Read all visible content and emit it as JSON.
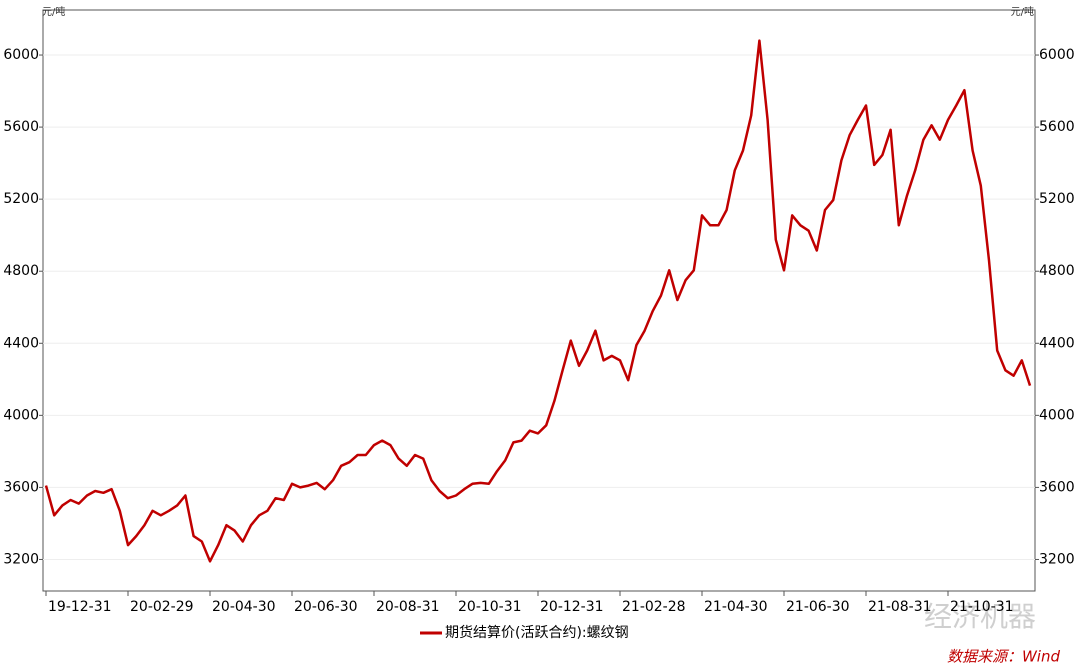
{
  "chart_data": {
    "type": "line",
    "y_unit": "元/吨",
    "y2_unit": "元/吨",
    "source": "数据来源：Wind",
    "watermark": "经济机器",
    "categories": [
      "19-12-31",
      null,
      null,
      null,
      null,
      null,
      null,
      null,
      null,
      null,
      "20-02-29",
      null,
      null,
      null,
      null,
      null,
      null,
      null,
      null,
      null,
      "20-04-30",
      null,
      null,
      null,
      null,
      null,
      null,
      null,
      null,
      null,
      "20-06-30",
      null,
      null,
      null,
      null,
      null,
      null,
      null,
      null,
      null,
      "20-08-31",
      null,
      null,
      null,
      null,
      null,
      null,
      null,
      null,
      null,
      "20-10-31",
      null,
      null,
      null,
      null,
      null,
      null,
      null,
      null,
      null,
      "20-12-31",
      null,
      null,
      null,
      null,
      null,
      null,
      null,
      null,
      null,
      "21-02-28",
      null,
      null,
      null,
      null,
      null,
      null,
      null,
      null,
      null,
      "21-04-30",
      null,
      null,
      null,
      null,
      null,
      null,
      null,
      null,
      null,
      "21-06-30",
      null,
      null,
      null,
      null,
      null,
      null,
      null,
      null,
      null,
      "21-08-31",
      null,
      null,
      null,
      null,
      null,
      null,
      null,
      null,
      null,
      "21-10-31",
      null,
      null,
      null,
      null,
      null,
      null,
      null,
      null,
      null,
      null
    ],
    "series": [
      {
        "name": "期货结算价(活跃合约):螺纹钢",
        "color": "#c00000",
        "values": [
          3610,
          3445,
          3500,
          3530,
          3510,
          3555,
          3580,
          3570,
          3590,
          3470,
          3280,
          3330,
          3390,
          3470,
          3445,
          3470,
          3500,
          3555,
          3330,
          3300,
          3190,
          3280,
          3390,
          3360,
          3300,
          3390,
          3445,
          3470,
          3540,
          3530,
          3620,
          3600,
          3610,
          3625,
          3590,
          3640,
          3720,
          3740,
          3780,
          3780,
          3835,
          3860,
          3835,
          3760,
          3720,
          3780,
          3760,
          3640,
          3580,
          3540,
          3555,
          3590,
          3620,
          3625,
          3620,
          3690,
          3750,
          3850,
          3860,
          3915,
          3900,
          3945,
          4080,
          4250,
          4415,
          4275,
          4360,
          4470,
          4305,
          4330,
          4305,
          4195,
          4390,
          4470,
          4580,
          4665,
          4805,
          4640,
          4750,
          4805,
          5110,
          5055,
          5055,
          5140,
          5360,
          5470,
          5665,
          6080,
          5640,
          4975,
          4805,
          5110,
          5055,
          5025,
          4915,
          5140,
          5195,
          5415,
          5555,
          5640,
          5720,
          5390,
          5445,
          5585,
          5055,
          5220,
          5360,
          5530,
          5610,
          5530,
          5640,
          5720,
          5805,
          5470,
          5275,
          4860,
          4360,
          4250,
          4220,
          4305,
          4165
        ]
      }
    ],
    "ylim": [
      3025,
      6250
    ],
    "yticks": [
      3200,
      3600,
      4000,
      4400,
      4800,
      5200,
      5600,
      6000
    ],
    "y2lim": [
      3025,
      6250
    ],
    "y2ticks": [
      3200,
      3600,
      4000,
      4400,
      4800,
      5200,
      5600,
      6000
    ],
    "grid": true
  }
}
